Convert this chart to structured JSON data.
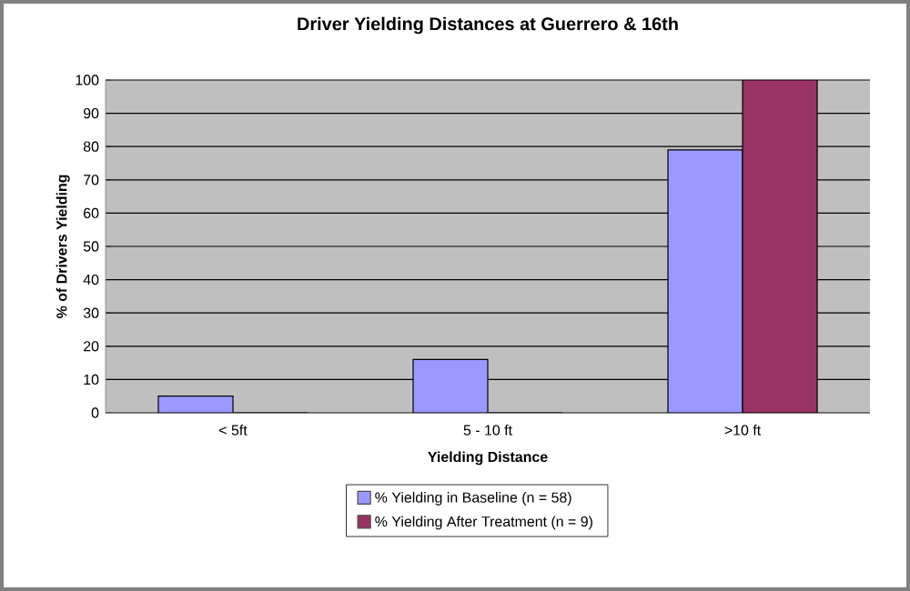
{
  "chart_data": {
    "type": "bar",
    "title": "Driver Yielding Distances at Guerrero & 16th",
    "xlabel": "Yielding Distance",
    "ylabel": "% of Drivers Yielding",
    "categories": [
      "<  5ft",
      "5 - 10 ft",
      ">10 ft"
    ],
    "series": [
      {
        "name": "% Yielding in Baseline (n = 58)",
        "color": "#9999ff",
        "values": [
          5,
          16,
          79
        ]
      },
      {
        "name": "% Yielding After Treatment (n =  9)",
        "color": "#993366",
        "values": [
          0,
          0,
          100
        ]
      }
    ],
    "ylim": [
      0,
      100
    ],
    "yticks": [
      0,
      10,
      20,
      30,
      40,
      50,
      60,
      70,
      80,
      90,
      100
    ],
    "grid": "y",
    "legend": "bottom"
  }
}
